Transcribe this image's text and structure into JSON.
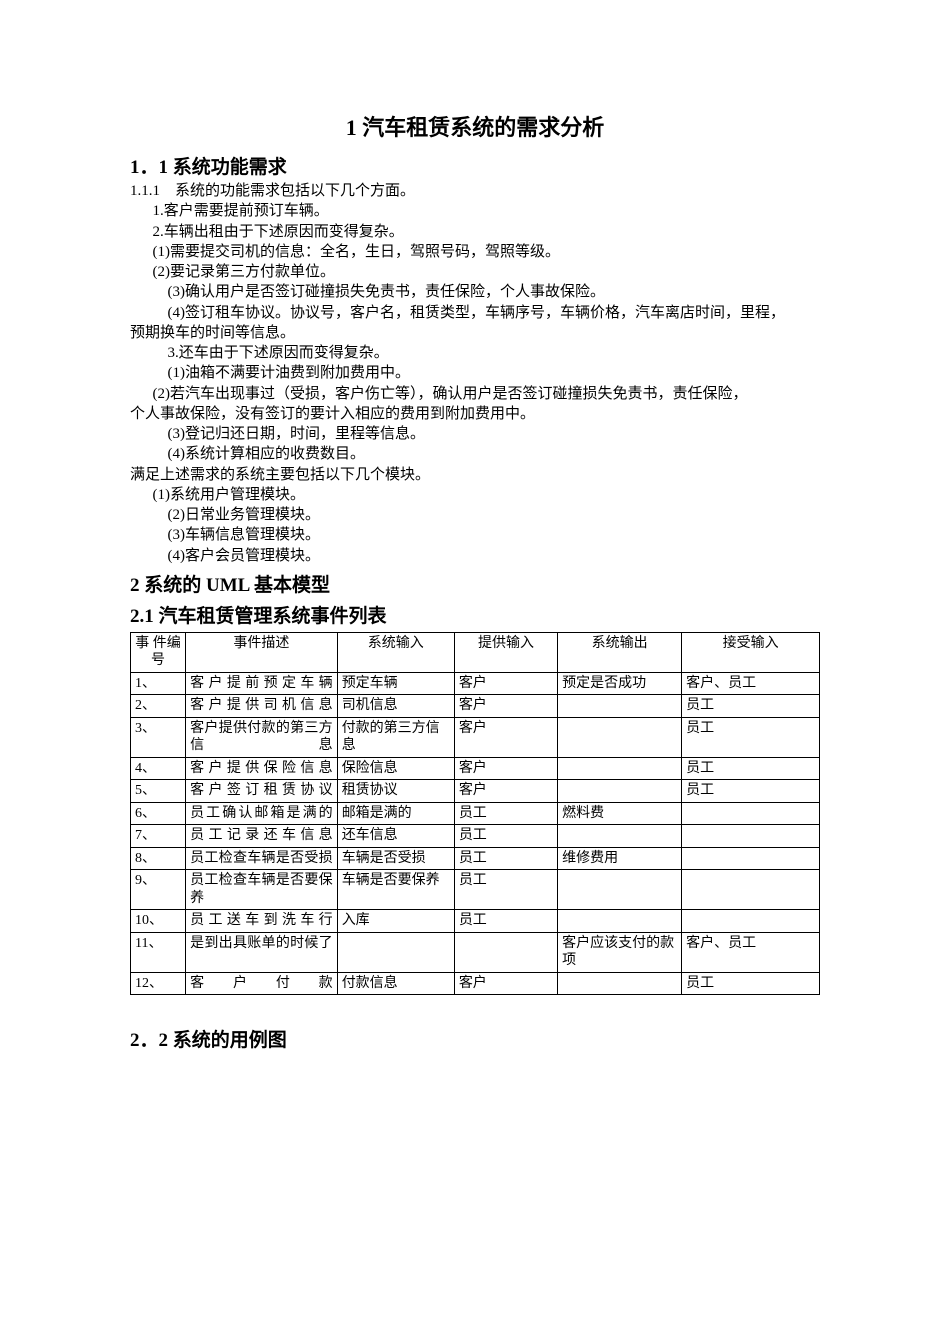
{
  "title": "1 汽车租赁系统的需求分析",
  "section_1_1": "1．1 系统功能需求",
  "line_1_1_1": "1.1.1　系统的功能需求包括以下几个方面。",
  "line_a": "1.客户需要提前预订车辆。",
  "line_b": "2.车辆出租由于下述原因而变得复杂。",
  "line_b1": "(1)需要提交司机的信息：全名，生日，驾照号码，驾照等级。",
  "line_b2": "(2)要记录第三方付款单位。",
  "line_b3": "(3)确认用户是否签订碰撞损失免责书，责任保险，个人事故保险。",
  "line_b4": "(4)签订租车协议。协议号，客户名，租赁类型，车辆序号，车辆价格，汽车离店时间，里程，",
  "line_b4b": "预期换车的时间等信息。",
  "line_c": "3.还车由于下述原因而变得复杂。",
  "line_c1": "(1)油箱不满要计油费到附加费用中。",
  "line_c2": "(2)若汽车出现事过（受损，客户伤亡等），确认用户是否签订碰撞损失免责书，责任保险，",
  "line_c2b": "个人事故保险，没有签订的要计入相应的费用到附加费用中。",
  "line_c3": "(3)登记归还日期，时间，里程等信息。",
  "line_c4": "(4)系统计算相应的收费数目。",
  "line_d": "满足上述需求的系统主要包括以下几个模块。",
  "line_d1": "(1)系统用户管理模块。",
  "line_d2": "(2)日常业务管理模块。",
  "line_d3": "(3)车辆信息管理模块。",
  "line_d4": "(4)客户会员管理模块。",
  "section_2": "2  系统的 UML 基本模型",
  "section_2_1": "2.1 汽车租赁管理系统事件列表",
  "table": {
    "headers": [
      "事 件编号",
      "事件描述",
      "系统输入",
      "提供输入",
      "系统输出",
      "接受输入"
    ],
    "rows": [
      [
        "1、",
        "客户提前预定车辆",
        "预定车辆",
        "客户",
        "预定是否成功",
        "客户、员工"
      ],
      [
        "2、",
        "客户提供司机信息",
        "司机信息",
        "客户",
        "",
        "员工"
      ],
      [
        "3、",
        "客户提供付款的第三方信息",
        "付款的第三方信息",
        "客户",
        "",
        "员工"
      ],
      [
        "4、",
        "客户提供保险信息",
        "保险信息",
        "客户",
        "",
        "员工"
      ],
      [
        "5、",
        "客户签订租赁协议",
        "租赁协议",
        "客户",
        "",
        "员工"
      ],
      [
        "6、",
        "员工确认邮箱是满的",
        "邮箱是满的",
        "员工",
        "燃料费",
        ""
      ],
      [
        "7、",
        "员工记录还车信息",
        "还车信息",
        "员工",
        "",
        ""
      ],
      [
        "8、",
        "员工检查车辆是否受损",
        "车辆是否受损",
        "员工",
        "维修费用",
        ""
      ],
      [
        "9、",
        "员工检查车辆是否要保养",
        "车辆是否要保养",
        "员工",
        "",
        ""
      ],
      [
        "10、",
        "员工送车到洗车行",
        "入库",
        "员工",
        "",
        ""
      ],
      [
        "11、",
        "是到出具账单的时候了",
        "",
        "",
        "客户应该支付的款项",
        "客户、员工"
      ],
      [
        "12、",
        "客户付款",
        "付款信息",
        "客户",
        "",
        "员工"
      ]
    ]
  },
  "section_2_2": "2．2 系统的用例图"
}
